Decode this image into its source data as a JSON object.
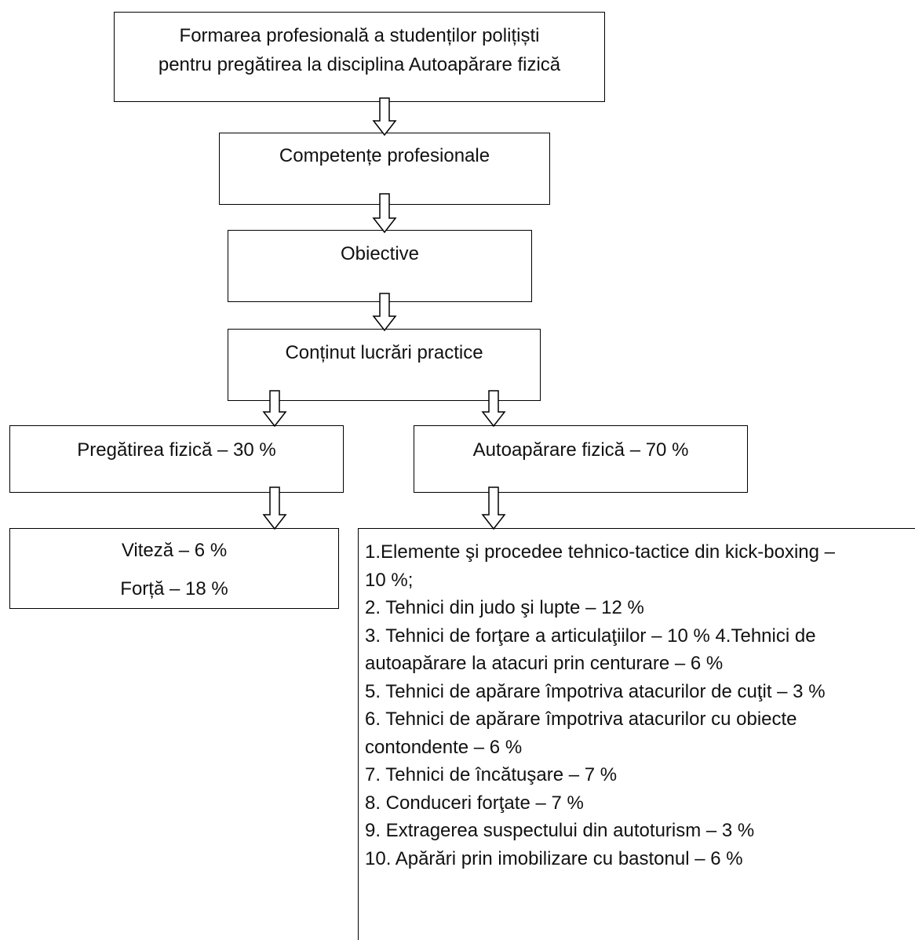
{
  "boxes": {
    "formarea": {
      "line1": "Formarea profesională a studenților polițiști",
      "line2": "pentru pregătirea la disciplina Autoapărare fizică"
    },
    "competente": "Competențe profesionale",
    "obiective": "Obiective",
    "continut": "Conținut lucrări practice",
    "pregatirea": "Pregătirea fizică – 30 %",
    "autoaparare": "Autoapărare fizică – 70 %",
    "viteza": "Viteză – 6 %",
    "forta": "Forță – 18 %"
  },
  "autoaparare_details": [
    "1.Elemente şi procedee tehnico-tactice din kick-boxing –",
    "10 %;",
    "2. Tehnici din judo şi lupte – 12 %",
    "3. Tehnici de forţare a articulaţiilor – 10 % 4.Tehnici de",
    "autoapărare la atacuri prin centurare – 6 %",
    "5. Tehnici de apărare împotriva atacurilor de cuţit – 3 %",
    "6. Tehnici de apărare împotriva atacurilor cu obiecte",
    "contondente – 6 %",
    "7. Tehnici de încătuşare – 7 %",
    "8. Conduceri forţate – 7 %",
    "9. Extragerea suspectului din autoturism – 3 %",
    "10. Apărări prin imobilizare cu bastonul – 6 %"
  ]
}
